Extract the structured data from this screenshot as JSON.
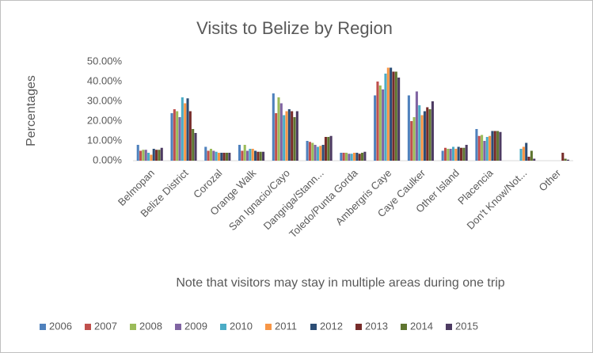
{
  "chart_data": {
    "type": "bar",
    "title": "Visits to Belize by Region",
    "y_label": "Percentages",
    "note": "Note that visitors may stay in multiple areas during one trip",
    "categories": [
      "Belmopan",
      "Belize District",
      "Corozal",
      "Orange Walk",
      "San Ignacio/Cayo",
      "Dangriga/Stann...",
      "Toledo/Punta Gorda",
      "Ambergris Caye",
      "Caye Caulker",
      "Other Island",
      "Placencia",
      "Don't Know/Not...",
      "Other"
    ],
    "series": [
      {
        "name": "2006",
        "color": "#4f81bd",
        "values": [
          8,
          24,
          7,
          8,
          34,
          10,
          4,
          33,
          33,
          5,
          16,
          0,
          0
        ]
      },
      {
        "name": "2007",
        "color": "#c0504d",
        "values": [
          5,
          26,
          5,
          5,
          24,
          9.5,
          4,
          40,
          20,
          6.5,
          12.5,
          0,
          0
        ]
      },
      {
        "name": "2008",
        "color": "#9bbb59",
        "values": [
          5.5,
          25,
          6,
          8,
          32,
          9,
          4,
          38,
          22,
          6,
          13,
          0,
          0
        ]
      },
      {
        "name": "2009",
        "color": "#8064a2",
        "values": [
          5.5,
          22,
          5,
          5,
          29,
          8,
          3.5,
          36,
          35,
          6,
          10,
          0,
          0
        ]
      },
      {
        "name": "2010",
        "color": "#4bacc6",
        "values": [
          4,
          32,
          4.5,
          6,
          23,
          7,
          3.5,
          44,
          28,
          7,
          12,
          6,
          0
        ]
      },
      {
        "name": "2011",
        "color": "#f79646",
        "values": [
          3,
          29,
          4,
          6,
          25,
          7.5,
          4,
          47,
          23,
          6,
          12.5,
          7,
          0
        ]
      },
      {
        "name": "2012",
        "color": "#2c4d75",
        "values": [
          6,
          31.5,
          4,
          5,
          26,
          8,
          4,
          47,
          25,
          7,
          15,
          9,
          0
        ]
      },
      {
        "name": "2013",
        "color": "#772c2a",
        "values": [
          5.5,
          25,
          4,
          4.5,
          25,
          12,
          3.5,
          45,
          27,
          6.5,
          15,
          2,
          4
        ]
      },
      {
        "name": "2014",
        "color": "#5f7530",
        "values": [
          5.5,
          16,
          4,
          4.5,
          22,
          12,
          4,
          45,
          26,
          6.5,
          15,
          5,
          1
        ]
      },
      {
        "name": "2015",
        "color": "#4d3b62",
        "values": [
          6.5,
          14,
          4,
          4.5,
          25,
          12.5,
          4.5,
          42,
          30,
          8,
          14.5,
          1,
          0.5
        ]
      }
    ],
    "ylim": [
      0,
      50
    ],
    "yticks": [
      {
        "value": 0,
        "label": "0.00%"
      },
      {
        "value": 10,
        "label": "10.00%"
      },
      {
        "value": 20,
        "label": "20.00%"
      },
      {
        "value": 30,
        "label": "30.00%"
      },
      {
        "value": 40,
        "label": "40.00%"
      },
      {
        "value": 50,
        "label": "50.00%"
      }
    ],
    "grid": false,
    "legend": "bottom"
  }
}
